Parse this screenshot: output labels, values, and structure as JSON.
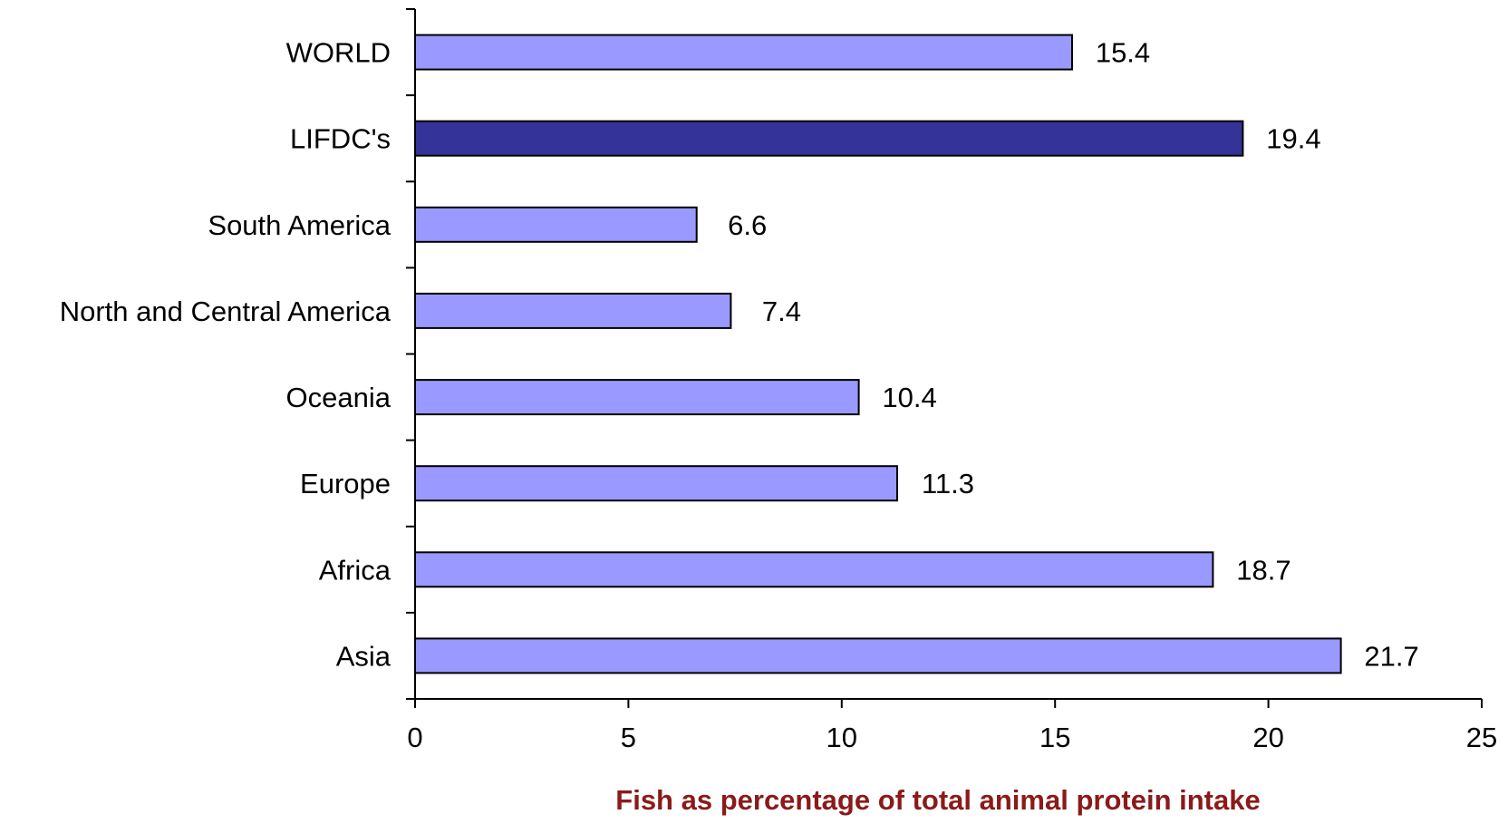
{
  "chart_data": {
    "type": "bar",
    "orientation": "horizontal",
    "categories": [
      "WORLD",
      "LIFDC's",
      "South America",
      "North and Central America",
      "Oceania",
      "Europe",
      "Africa",
      "Asia"
    ],
    "values": [
      15.4,
      19.4,
      6.6,
      7.4,
      10.4,
      11.3,
      18.7,
      21.7
    ],
    "value_labels": [
      "15.4",
      "19.4",
      "6.6",
      "7.4",
      "10.4",
      "11.3",
      "18.7",
      "21.7"
    ],
    "xlabel": "Fish as percentage of total animal protein intake",
    "ylabel": "",
    "xlim": [
      0,
      25
    ],
    "x_ticks": [
      "0",
      "5",
      "10",
      "15",
      "20",
      "25"
    ],
    "grid": false,
    "colors": {
      "bar": "#9999ff",
      "highlight_bar": "#333399",
      "bar_outline": "#000000",
      "axis_title": "#8b1a1a"
    },
    "highlight_category": "LIFDC's"
  }
}
